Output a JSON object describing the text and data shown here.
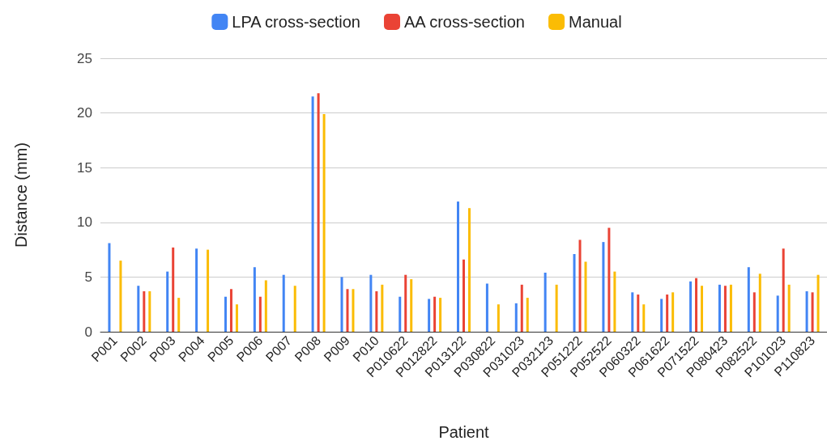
{
  "chart_data": {
    "type": "bar",
    "xlabel": "Patient",
    "ylabel": "Distance (mm)",
    "categories": [
      "P001",
      "P002",
      "P003",
      "P004",
      "P005",
      "P006",
      "P007",
      "P008",
      "P009",
      "P010",
      "P010622",
      "P012822",
      "P013122",
      "P030822",
      "P031023",
      "P032123",
      "P051222",
      "P052522",
      "P060322",
      "P061622",
      "P071522",
      "P080423",
      "P082522",
      "P101023",
      "P110823"
    ],
    "series": [
      {
        "name": "LPA cross-section",
        "color": "#4285f4",
        "values": [
          8.1,
          4.2,
          5.5,
          7.6,
          3.2,
          5.9,
          5.2,
          21.5,
          5.0,
          5.2,
          3.2,
          3.0,
          11.9,
          4.4,
          2.6,
          5.4,
          7.1,
          8.2,
          3.6,
          3.0,
          4.6,
          4.3,
          5.9,
          3.3,
          3.7
        ]
      },
      {
        "name": "AA cross-section",
        "color": "#ea4335",
        "values": [
          null,
          3.7,
          7.7,
          null,
          3.9,
          3.2,
          null,
          21.8,
          3.9,
          3.7,
          5.2,
          3.2,
          6.6,
          null,
          4.3,
          null,
          8.4,
          9.5,
          3.4,
          3.4,
          4.9,
          4.2,
          3.6,
          7.6,
          3.6
        ]
      },
      {
        "name": "Manual",
        "color": "#fbbc04",
        "values": [
          6.5,
          3.7,
          3.1,
          7.5,
          2.5,
          4.7,
          4.2,
          19.9,
          3.9,
          4.3,
          4.8,
          3.1,
          11.3,
          2.5,
          3.1,
          4.3,
          6.4,
          5.5,
          2.5,
          3.6,
          4.2,
          4.3,
          5.3,
          4.3,
          5.2
        ]
      }
    ],
    "ylim": [
      0,
      25
    ],
    "yticks": [
      0,
      5,
      10,
      15,
      20,
      25
    ],
    "grid": "y",
    "legend": "top"
  }
}
